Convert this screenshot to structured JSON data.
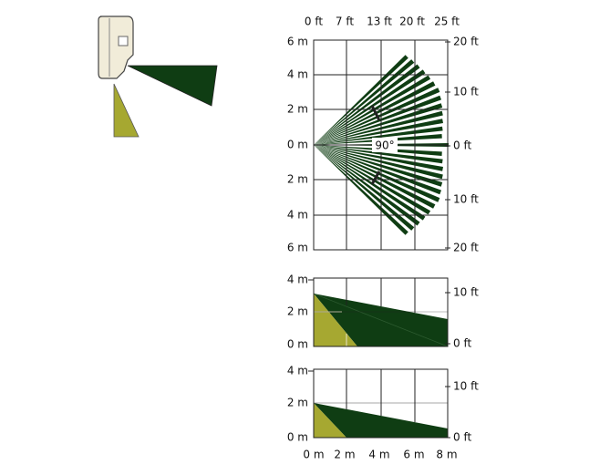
{
  "top_view": {
    "top_labels": [
      "0 ft",
      "7 ft",
      "13 ft",
      "20 ft",
      "25 ft"
    ],
    "left_labels": [
      "6 m",
      "4 m",
      "2 m",
      "0 m",
      "2 m",
      "4 m",
      "6 m"
    ],
    "right_labels": [
      "20 ft",
      "10 ft",
      "0 ft",
      "10 ft",
      "20 ft"
    ],
    "angle_label": "90°"
  },
  "side_view_1": {
    "left_labels": [
      "4 m",
      "2 m",
      "0 m"
    ],
    "right_labels": [
      "10 ft",
      "0 ft"
    ]
  },
  "side_view_2": {
    "left_labels": [
      "4 m",
      "2 m",
      "0 m"
    ],
    "right_labels": [
      "10 ft",
      "0 ft"
    ]
  },
  "bottom_labels": [
    "0 m",
    "2 m",
    "4 m",
    "6 m",
    "8 m"
  ]
}
